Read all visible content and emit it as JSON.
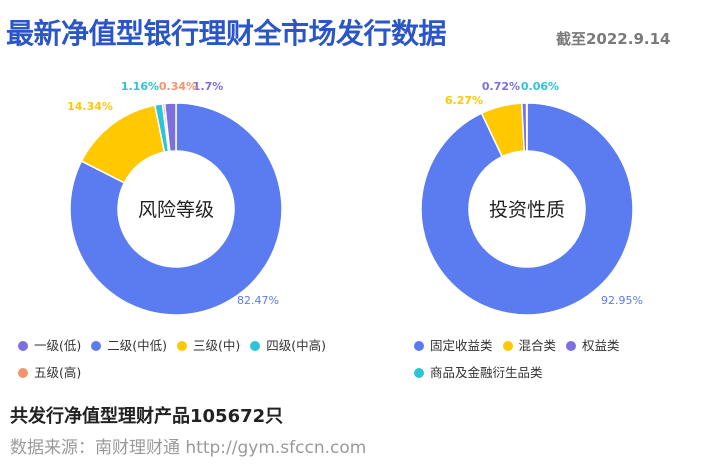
{
  "header": {
    "title": "最新净值型银行理财全市场发行数据",
    "date": "截至2022.9.14"
  },
  "colors": {
    "blue": "#5b7bf0",
    "yellow": "#ffc800",
    "purple": "#7c6fe0",
    "cyan": "#2bc4d8",
    "orange": "#f5946a",
    "title": "#2a56c6"
  },
  "chart_data": [
    {
      "type": "pie",
      "center_label": "风险等级",
      "slices": [
        {
          "name": "一级(低)",
          "value": 1.7,
          "label": "1.7%",
          "color": "#7c6fe0"
        },
        {
          "name": "二级(中低)",
          "value": 82.47,
          "label": "82.47%",
          "color": "#5b7bf0"
        },
        {
          "name": "三级(中)",
          "value": 14.34,
          "label": "14.34%",
          "color": "#ffc800"
        },
        {
          "name": "四级(中高)",
          "value": 1.16,
          "label": "1.16%",
          "color": "#2bc4d8"
        },
        {
          "name": "五级(高)",
          "value": 0.34,
          "label": "0.34%",
          "color": "#f5946a"
        }
      ],
      "legend": [
        [
          "一级(低)",
          "二级(中低)",
          "三级(中)",
          "四级(中高)"
        ],
        [
          "五级(高)"
        ]
      ]
    },
    {
      "type": "pie",
      "center_label": "投资性质",
      "slices": [
        {
          "name": "固定收益类",
          "value": 92.95,
          "label": "92.95%",
          "color": "#5b7bf0"
        },
        {
          "name": "混合类",
          "value": 6.27,
          "label": "6.27%",
          "color": "#ffc800"
        },
        {
          "name": "权益类",
          "value": 0.72,
          "label": "0.72%",
          "color": "#7c6fe0"
        },
        {
          "name": "商品及金融衍生品类",
          "value": 0.06,
          "label": "0.06%",
          "color": "#2bc4d8"
        }
      ],
      "legend": [
        [
          "固定收益类",
          "混合类",
          "权益类"
        ],
        [
          "商品及金融衍生品类"
        ]
      ]
    }
  ],
  "footer": {
    "total": "共发行净值型理财产品105672只",
    "source": "数据来源：南财理财通 http://gym.sfccn.com"
  }
}
